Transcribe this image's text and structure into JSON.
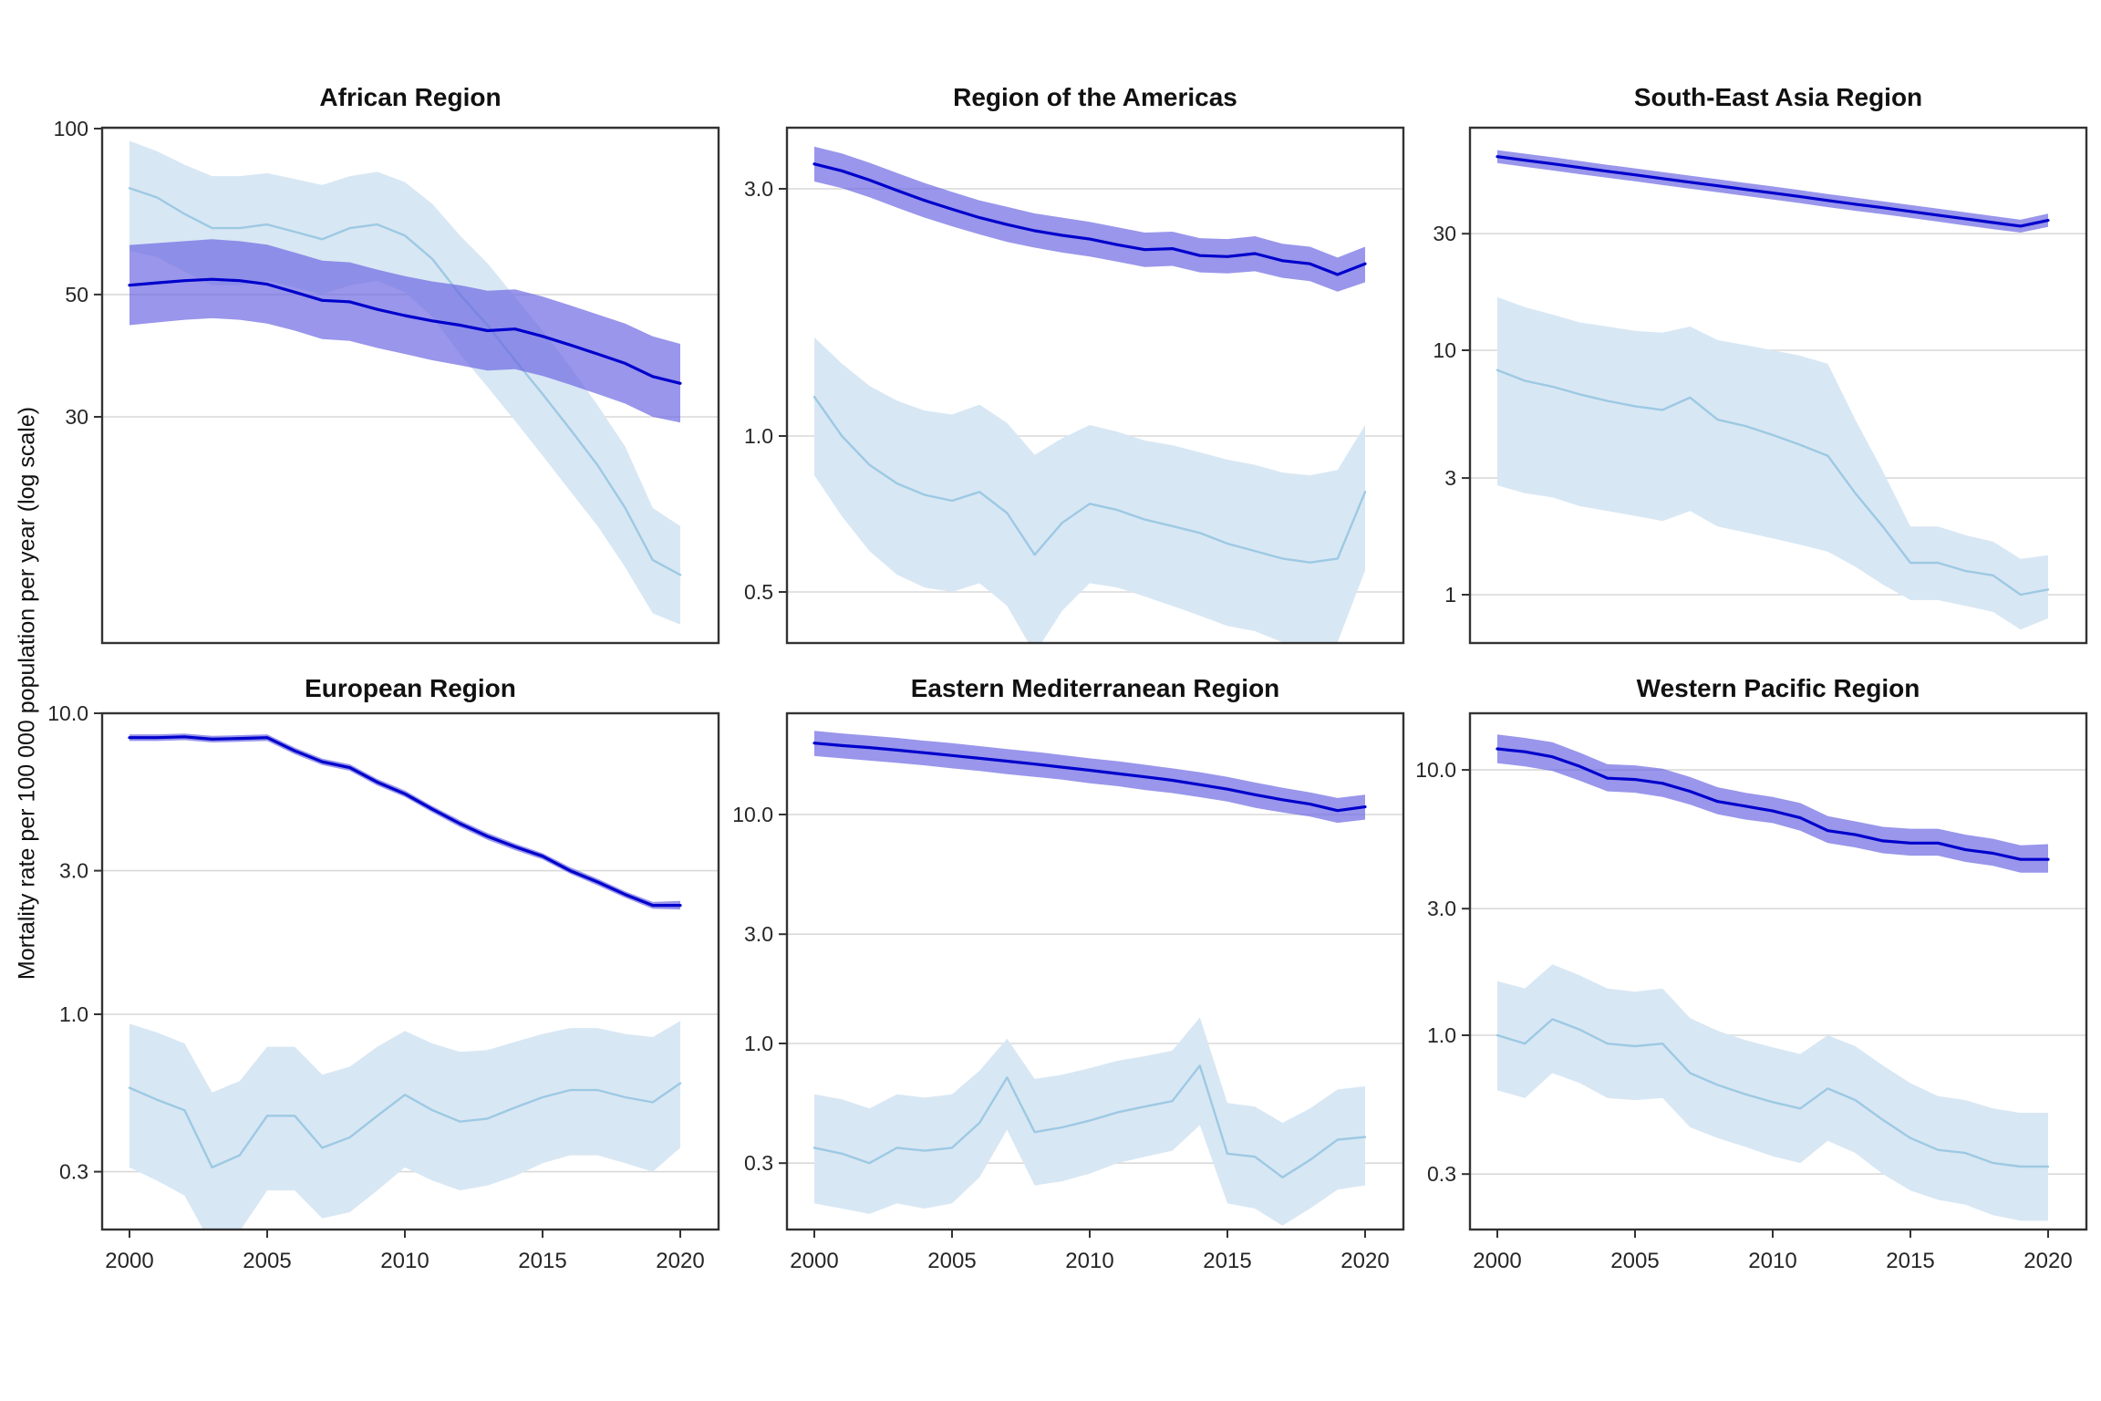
{
  "figure": {
    "ylabel": "Mortality rate per 100 000 population per year (log scale)",
    "years": [
      2000,
      2001,
      2002,
      2003,
      2004,
      2005,
      2006,
      2007,
      2008,
      2009,
      2010,
      2011,
      2012,
      2013,
      2014,
      2015,
      2016,
      2017,
      2018,
      2019,
      2020
    ],
    "xtick_years": [
      2000,
      2005,
      2010,
      2015,
      2020
    ],
    "xtick_labels": [
      "2000",
      "2005",
      "2010",
      "2015",
      "2020"
    ],
    "colors": {
      "dark_line": "#0000CC",
      "dark_band": "#6964E1",
      "light_line": "#9DC9E3",
      "light_band": "#D8E7F4",
      "grid": "#D9D9D9",
      "border": "#333333",
      "tick_text": "#262626"
    }
  },
  "chart_data": [
    {
      "type": "line",
      "title": "African Region",
      "ylog": true,
      "ylim": [
        11.66,
        100.4
      ],
      "ytick_values": [
        100,
        50,
        30
      ],
      "ytick_labels": [
        "100",
        "50",
        "30"
      ],
      "series": [
        {
          "name": "dark-blue",
          "values": [
            52,
            52.5,
            53,
            53.3,
            53,
            52.2,
            50.5,
            48.8,
            48.5,
            47,
            45.8,
            44.8,
            44,
            43,
            43.3,
            42,
            40.5,
            39,
            37.5,
            35.5,
            34.5
          ],
          "lower": [
            44,
            44.5,
            45,
            45.3,
            45,
            44.3,
            43,
            41.5,
            41.2,
            40,
            39,
            38,
            37.2,
            36.4,
            36.6,
            35.6,
            34.3,
            33,
            31.7,
            30,
            29.3
          ],
          "upper": [
            61.5,
            62,
            62.5,
            63,
            62.5,
            61.6,
            59.6,
            57.6,
            57.2,
            55.5,
            54,
            52.8,
            52,
            50.8,
            51.1,
            49.6,
            47.8,
            46,
            44.3,
            42,
            40.7
          ]
        },
        {
          "name": "light-blue",
          "values": [
            78,
            75,
            70,
            66,
            66,
            67,
            65,
            63,
            66,
            67,
            64,
            58,
            50,
            44,
            38,
            33,
            28.5,
            24.5,
            20.5,
            16.5,
            15.5
          ],
          "lower": [
            60,
            58.5,
            55,
            52,
            52,
            53,
            51.5,
            50,
            52,
            53,
            50.5,
            45.5,
            39,
            34,
            29.5,
            25.5,
            22,
            19,
            16,
            13.2,
            12.6
          ],
          "upper": [
            95,
            91,
            86,
            82,
            82,
            83,
            81,
            79,
            82,
            83.5,
            80,
            73,
            64,
            57,
            49.5,
            43,
            37,
            31.5,
            26.5,
            20.5,
            19
          ]
        }
      ]
    },
    {
      "type": "line",
      "title": "Region of the Americas",
      "ylog": true,
      "ylim": [
        0.3985,
        3.937
      ],
      "ytick_values": [
        3.0,
        1.0,
        0.5
      ],
      "ytick_labels": [
        "3.0",
        "1.0",
        "0.5"
      ],
      "series": [
        {
          "name": "dark-blue",
          "values": [
            3.35,
            3.25,
            3.12,
            2.98,
            2.85,
            2.74,
            2.64,
            2.56,
            2.49,
            2.44,
            2.4,
            2.34,
            2.29,
            2.3,
            2.23,
            2.22,
            2.25,
            2.18,
            2.15,
            2.05,
            2.15
          ],
          "lower": [
            3.1,
            3.01,
            2.89,
            2.76,
            2.64,
            2.54,
            2.45,
            2.37,
            2.31,
            2.26,
            2.22,
            2.17,
            2.12,
            2.13,
            2.07,
            2.06,
            2.08,
            2.02,
            1.99,
            1.9,
            1.98
          ],
          "upper": [
            3.62,
            3.51,
            3.37,
            3.22,
            3.08,
            2.96,
            2.85,
            2.77,
            2.69,
            2.64,
            2.59,
            2.53,
            2.47,
            2.48,
            2.41,
            2.4,
            2.43,
            2.35,
            2.32,
            2.21,
            2.32
          ]
        },
        {
          "name": "light-blue",
          "values": [
            1.19,
            1.0,
            0.88,
            0.81,
            0.77,
            0.75,
            0.78,
            0.71,
            0.59,
            0.68,
            0.74,
            0.72,
            0.69,
            0.67,
            0.65,
            0.62,
            0.6,
            0.58,
            0.57,
            0.58,
            0.78
          ],
          "lower": [
            0.84,
            0.7,
            0.6,
            0.54,
            0.51,
            0.5,
            0.52,
            0.47,
            0.38,
            0.46,
            0.52,
            0.51,
            0.49,
            0.47,
            0.45,
            0.43,
            0.42,
            0.4,
            0.39,
            0.4,
            0.55
          ],
          "upper": [
            1.55,
            1.38,
            1.25,
            1.17,
            1.12,
            1.1,
            1.15,
            1.06,
            0.92,
            0.99,
            1.05,
            1.02,
            0.98,
            0.96,
            0.93,
            0.9,
            0.88,
            0.85,
            0.84,
            0.86,
            1.05
          ]
        }
      ]
    },
    {
      "type": "line",
      "title": "South-East Asia Region",
      "ylog": true,
      "ylim": [
        0.634,
        81.4
      ],
      "ytick_values": [
        30,
        10,
        3,
        1
      ],
      "ytick_labels": [
        "30",
        "10",
        "3",
        "1"
      ],
      "series": [
        {
          "name": "dark-blue",
          "values": [
            62,
            59.9,
            57.9,
            55.9,
            54,
            52.2,
            50.4,
            48.7,
            47.1,
            45.5,
            44,
            42.5,
            41,
            39.6,
            38.3,
            37,
            35.7,
            34.5,
            33.3,
            32.2,
            34
          ],
          "lower": [
            58.3,
            56.3,
            54.4,
            52.5,
            50.8,
            49.1,
            47.4,
            45.8,
            44.3,
            42.8,
            41.4,
            40,
            38.5,
            37.2,
            36,
            34.8,
            33.6,
            32.4,
            31.3,
            30.3,
            32
          ],
          "upper": [
            65.9,
            63.7,
            61.6,
            59.5,
            57.4,
            55.5,
            53.6,
            51.8,
            50.1,
            48.4,
            46.8,
            45.2,
            43.6,
            42.1,
            40.7,
            39.3,
            38,
            36.7,
            35.4,
            34.2,
            36.2
          ]
        },
        {
          "name": "light-blue",
          "values": [
            8.3,
            7.5,
            7.1,
            6.6,
            6.2,
            5.9,
            5.7,
            6.4,
            5.2,
            4.9,
            4.5,
            4.1,
            3.7,
            2.6,
            1.9,
            1.35,
            1.35,
            1.25,
            1.2,
            1.0,
            1.05
          ],
          "lower": [
            2.8,
            2.6,
            2.5,
            2.3,
            2.2,
            2.1,
            2.0,
            2.2,
            1.9,
            1.8,
            1.7,
            1.6,
            1.5,
            1.3,
            1.1,
            0.95,
            0.95,
            0.9,
            0.85,
            0.72,
            0.8
          ],
          "upper": [
            16.5,
            15,
            14,
            13,
            12.5,
            12,
            11.8,
            12.5,
            11,
            10.5,
            10,
            9.5,
            8.8,
            5.2,
            3.2,
            1.9,
            1.9,
            1.75,
            1.65,
            1.4,
            1.45
          ]
        }
      ]
    },
    {
      "type": "line",
      "title": "European Region",
      "ylog": true,
      "ylim": [
        0.1927,
        10.0
      ],
      "ytick_values": [
        10.0,
        3.0,
        1.0,
        0.3
      ],
      "ytick_labels": [
        "10.0",
        "3.0",
        "1.0",
        "0.3"
      ],
      "series": [
        {
          "name": "dark-blue",
          "values": [
            8.3,
            8.3,
            8.35,
            8.2,
            8.25,
            8.3,
            7.5,
            6.9,
            6.6,
            5.9,
            5.4,
            4.8,
            4.3,
            3.9,
            3.6,
            3.35,
            3.0,
            2.75,
            2.5,
            2.3,
            2.3
          ],
          "lower": [
            8.09,
            8.09,
            8.14,
            8.0,
            8.04,
            8.09,
            7.31,
            6.73,
            6.44,
            5.75,
            5.27,
            4.68,
            4.19,
            3.8,
            3.51,
            3.27,
            2.93,
            2.68,
            2.44,
            2.24,
            2.23
          ],
          "upper": [
            8.51,
            8.51,
            8.56,
            8.41,
            8.46,
            8.51,
            7.69,
            7.07,
            6.77,
            6.05,
            5.54,
            4.92,
            4.41,
            4.0,
            3.69,
            3.43,
            3.08,
            2.82,
            2.56,
            2.36,
            2.38
          ]
        },
        {
          "name": "light-blue",
          "values": [
            0.57,
            0.52,
            0.48,
            0.31,
            0.34,
            0.46,
            0.46,
            0.36,
            0.39,
            0.46,
            0.54,
            0.48,
            0.44,
            0.45,
            0.49,
            0.53,
            0.56,
            0.56,
            0.53,
            0.51,
            0.59
          ],
          "lower": [
            0.31,
            0.28,
            0.25,
            0.17,
            0.19,
            0.26,
            0.26,
            0.21,
            0.22,
            0.26,
            0.31,
            0.28,
            0.26,
            0.27,
            0.29,
            0.32,
            0.34,
            0.34,
            0.32,
            0.3,
            0.36
          ],
          "upper": [
            0.93,
            0.87,
            0.8,
            0.55,
            0.6,
            0.78,
            0.78,
            0.63,
            0.67,
            0.78,
            0.88,
            0.8,
            0.75,
            0.76,
            0.81,
            0.86,
            0.9,
            0.9,
            0.86,
            0.84,
            0.95
          ]
        }
      ]
    },
    {
      "type": "line",
      "title": "Eastern Mediterranean Region",
      "ylog": true,
      "ylim": [
        0.1539,
        27.68
      ],
      "ytick_values": [
        10.0,
        3.0,
        1.0,
        0.3
      ],
      "ytick_labels": [
        "10.0",
        "3.0",
        "1.0",
        "0.3"
      ],
      "series": [
        {
          "name": "dark-blue",
          "values": [
            20.5,
            20,
            19.6,
            19.1,
            18.6,
            18.1,
            17.6,
            17.1,
            16.6,
            16.1,
            15.6,
            15.1,
            14.6,
            14.1,
            13.5,
            12.9,
            12.2,
            11.6,
            11.1,
            10.4,
            10.8
          ],
          "lower": [
            18,
            17.6,
            17.2,
            16.8,
            16.4,
            15.9,
            15.5,
            15,
            14.6,
            14.2,
            13.7,
            13.3,
            12.8,
            12.4,
            11.9,
            11.4,
            10.7,
            10.2,
            9.8,
            9.2,
            9.5
          ],
          "upper": [
            23.2,
            22.6,
            22.1,
            21.6,
            21,
            20.5,
            19.9,
            19.3,
            18.8,
            18.2,
            17.6,
            17.1,
            16.5,
            15.9,
            15.3,
            14.6,
            13.8,
            13.1,
            12.5,
            11.8,
            12.2
          ]
        },
        {
          "name": "light-blue",
          "values": [
            0.35,
            0.33,
            0.3,
            0.35,
            0.34,
            0.35,
            0.45,
            0.71,
            0.41,
            0.43,
            0.46,
            0.5,
            0.53,
            0.56,
            0.8,
            0.33,
            0.32,
            0.26,
            0.31,
            0.38,
            0.39
          ],
          "lower": [
            0.2,
            0.19,
            0.18,
            0.2,
            0.19,
            0.2,
            0.26,
            0.42,
            0.24,
            0.25,
            0.27,
            0.3,
            0.32,
            0.34,
            0.44,
            0.2,
            0.19,
            0.16,
            0.19,
            0.23,
            0.24
          ],
          "upper": [
            0.6,
            0.57,
            0.52,
            0.6,
            0.58,
            0.6,
            0.76,
            1.05,
            0.7,
            0.73,
            0.78,
            0.84,
            0.88,
            0.93,
            1.3,
            0.55,
            0.53,
            0.45,
            0.52,
            0.63,
            0.65
          ]
        }
      ]
    },
    {
      "type": "line",
      "title": "Western Pacific Region",
      "ylog": true,
      "ylim": [
        0.1854,
        16.34
      ],
      "ytick_values": [
        10.0,
        3.0,
        1.0,
        0.3
      ],
      "ytick_labels": [
        "10.0",
        "3.0",
        "1.0",
        "0.3"
      ],
      "series": [
        {
          "name": "dark-blue",
          "values": [
            12,
            11.7,
            11.2,
            10.3,
            9.3,
            9.2,
            8.9,
            8.3,
            7.6,
            7.3,
            7,
            6.6,
            5.9,
            5.7,
            5.4,
            5.3,
            5.3,
            5,
            4.85,
            4.6,
            4.6
          ],
          "lower": [
            10.6,
            10.3,
            9.9,
            9.1,
            8.3,
            8.2,
            7.9,
            7.4,
            6.8,
            6.5,
            6.3,
            5.9,
            5.3,
            5.1,
            4.85,
            4.75,
            4.75,
            4.5,
            4.35,
            4.1,
            4.1
          ],
          "upper": [
            13.6,
            13.2,
            12.7,
            11.6,
            10.5,
            10.4,
            10.1,
            9.4,
            8.6,
            8.2,
            7.9,
            7.5,
            6.7,
            6.4,
            6.1,
            6,
            6,
            5.7,
            5.5,
            5.2,
            5.25
          ]
        },
        {
          "name": "light-blue",
          "values": [
            1.0,
            0.93,
            1.15,
            1.05,
            0.93,
            0.91,
            0.93,
            0.72,
            0.65,
            0.6,
            0.56,
            0.53,
            0.63,
            0.57,
            0.48,
            0.41,
            0.37,
            0.36,
            0.33,
            0.32,
            0.32
          ],
          "lower": [
            0.62,
            0.58,
            0.72,
            0.66,
            0.58,
            0.57,
            0.58,
            0.45,
            0.41,
            0.38,
            0.35,
            0.33,
            0.4,
            0.36,
            0.3,
            0.26,
            0.24,
            0.23,
            0.21,
            0.2,
            0.2
          ],
          "upper": [
            1.6,
            1.5,
            1.85,
            1.68,
            1.5,
            1.46,
            1.5,
            1.16,
            1.04,
            0.96,
            0.9,
            0.85,
            1.0,
            0.91,
            0.77,
            0.66,
            0.59,
            0.57,
            0.53,
            0.51,
            0.51
          ]
        }
      ]
    }
  ]
}
